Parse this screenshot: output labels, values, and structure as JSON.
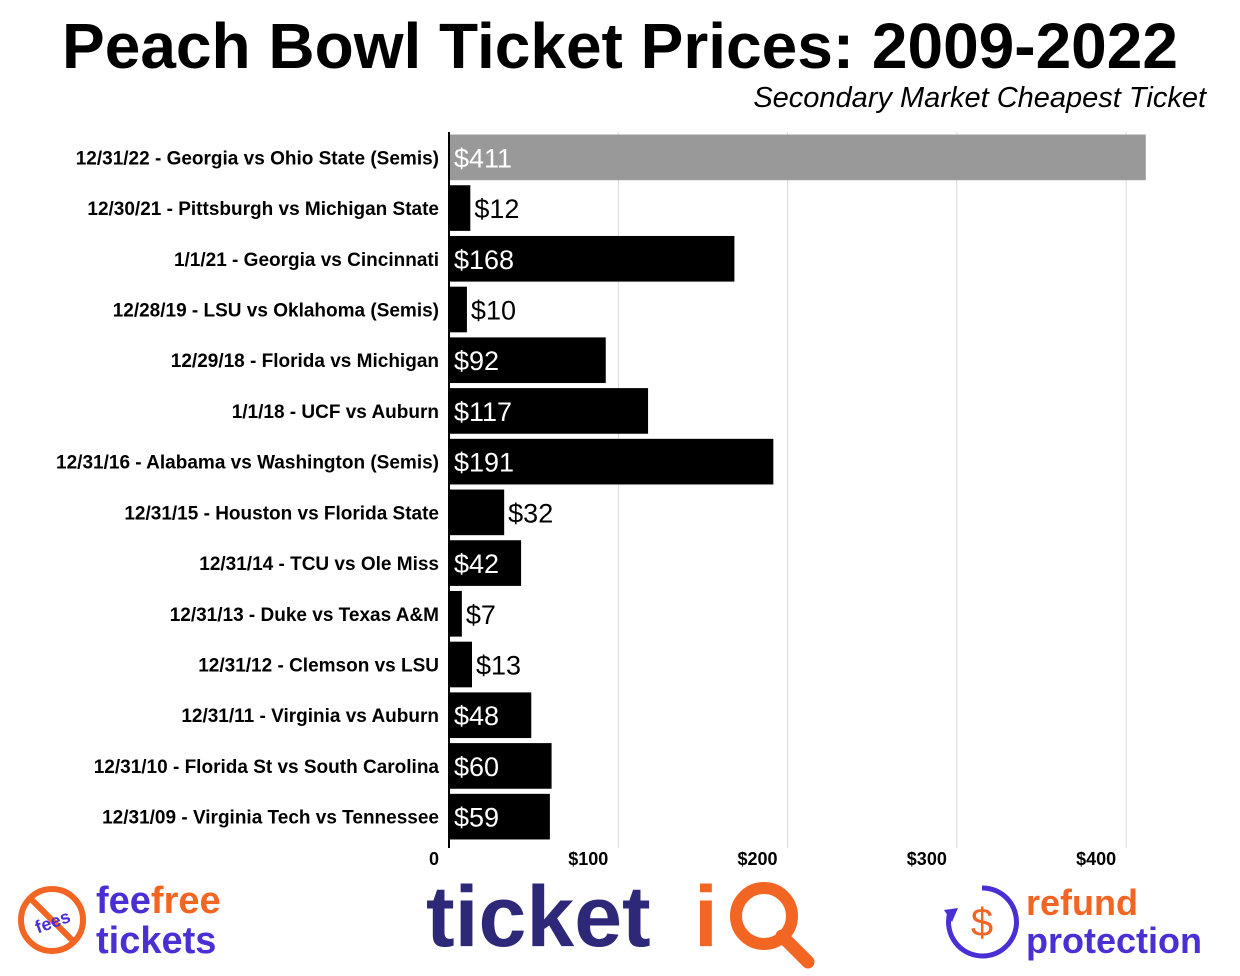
{
  "title": "Peach Bowl Ticket Prices: 2009-2022",
  "subtitle": "Secondary Market Cheapest Ticket",
  "colors": {
    "highlight_bar": "#999999",
    "bar": "#000000",
    "grid": "#d9d9d9",
    "brand_purple": "#4a2fd4",
    "brand_orange": "#f26522",
    "ticketiq_navy": "#2d2878"
  },
  "chart_data": {
    "type": "bar",
    "orientation": "horizontal",
    "categories": [
      "12/31/22 - Georgia vs Ohio State (Semis)",
      "12/30/21 - Pittsburgh vs Michigan State",
      "1/1/21 - Georgia vs Cincinnati",
      "12/28/19 - LSU vs Oklahoma (Semis)",
      "12/29/18 - Florida vs Michigan",
      "1/1/18 - UCF vs Auburn",
      "12/31/16 - Alabama vs Washington (Semis)",
      "12/31/15 - Houston vs Florida State",
      "12/31/14 - TCU vs Ole Miss",
      "12/31/13 - Duke vs Texas A&M",
      "12/31/12 - Clemson vs LSU",
      "12/31/11 - Virginia vs Auburn",
      "12/31/10 - Florida St vs South Carolina",
      "12/31/09 - Virginia Tech vs Tennessee"
    ],
    "values": [
      411,
      12,
      168,
      10,
      92,
      117,
      191,
      32,
      42,
      7,
      13,
      48,
      60,
      59
    ],
    "data_labels": [
      "$411",
      "$12",
      "$168",
      "$10",
      "$92",
      "$117",
      "$191",
      "$32",
      "$42",
      "$7",
      "$13",
      "$48",
      "$60",
      "$59"
    ],
    "highlighted_index": 0,
    "xlim": [
      0,
      420
    ],
    "xticks": [
      0,
      100,
      200,
      300,
      400
    ],
    "xtick_labels": [
      "0",
      "$100",
      "$200",
      "$300",
      "$400"
    ],
    "grid": true
  },
  "logos": {
    "feefree": {
      "badge": "fees",
      "line1_a": "fee",
      "line1_b": "free",
      "line2": "tickets"
    },
    "ticketiq": {
      "text_a": "ticket",
      "text_b": "iQ"
    },
    "refund": {
      "symbol": "$",
      "line1": "refund",
      "line2": "protection"
    }
  },
  "icons": [
    "no-fees-icon",
    "search-q-icon",
    "refund-arrow-icon"
  ]
}
